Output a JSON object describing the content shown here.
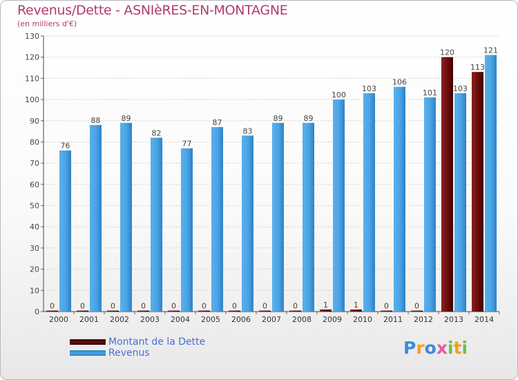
{
  "title": "Revenus/Dette - ASNIèRES-EN-MONTAGNE",
  "subtitle": "(en milliers d'€)",
  "logo": {
    "p": "P",
    "r": "r",
    "o": "o",
    "x": "x",
    "i1": "i",
    "t": "t",
    "i2": "i"
  },
  "colors": {
    "dette": "#6b0c0c",
    "revenus": "#4aa3e4",
    "title": "#b03a6e",
    "legend_text": "#4a6fd8"
  },
  "chart_data": {
    "type": "bar",
    "title": "Revenus/Dette - ASNIèRES-EN-MONTAGNE",
    "ylabel": "(en milliers d'€)",
    "xlabel": "",
    "categories": [
      "2000",
      "2001",
      "2002",
      "2003",
      "2004",
      "2005",
      "2006",
      "2007",
      "2008",
      "2009",
      "2010",
      "2011",
      "2012",
      "2013",
      "2014"
    ],
    "ylim": [
      0,
      130
    ],
    "yticks": [
      0,
      10,
      20,
      30,
      40,
      50,
      60,
      70,
      80,
      90,
      100,
      110,
      120,
      130
    ],
    "grid": true,
    "legend_position": "bottom-left",
    "series": [
      {
        "name": "Montant de la Dette",
        "values": [
          0,
          0,
          0,
          0,
          0,
          0,
          0,
          0,
          0,
          1,
          1,
          0,
          0,
          120,
          113
        ]
      },
      {
        "name": "Revenus",
        "values": [
          76,
          88,
          89,
          82,
          77,
          87,
          83,
          89,
          89,
          100,
          103,
          106,
          101,
          103,
          121
        ]
      }
    ]
  }
}
